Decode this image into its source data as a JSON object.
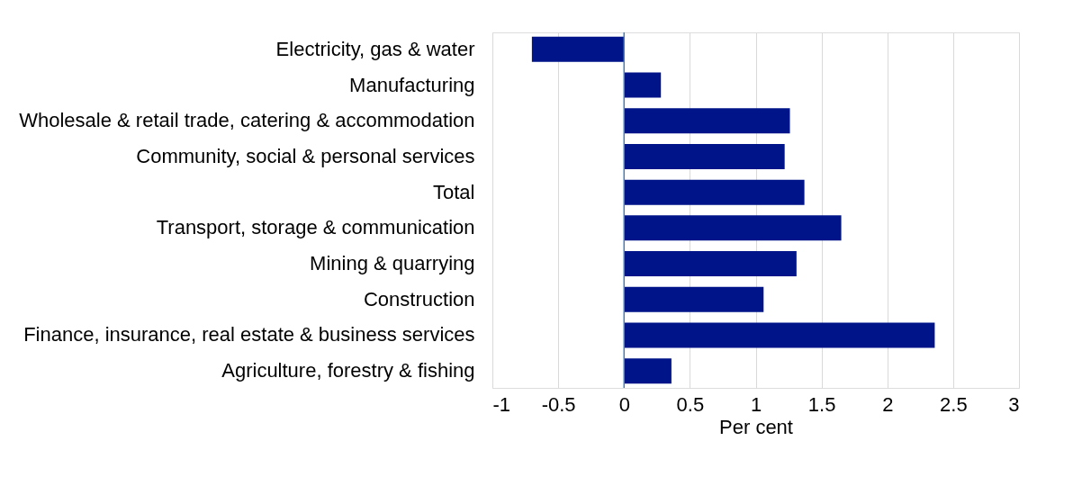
{
  "chart_data": {
    "type": "bar",
    "orientation": "horizontal",
    "xlabel": "Per cent",
    "categories": [
      "Electricity, gas & water",
      "Manufacturing",
      "Wholesale & retail trade, catering & accommodation",
      "Community, social & personal services",
      "Total",
      "Transport, storage & communication",
      "Mining & quarrying",
      "Construction",
      "Finance, insurance, real estate & business services",
      "Agriculture, forestry & fishing"
    ],
    "values": [
      -0.7,
      0.28,
      1.26,
      1.22,
      1.37,
      1.65,
      1.31,
      1.06,
      2.36,
      0.36
    ],
    "color": "#001489",
    "xlim": [
      -1,
      3
    ],
    "xticks": [
      -1,
      -0.5,
      0,
      0.5,
      1,
      1.5,
      2,
      2.5,
      3
    ],
    "grid": "x",
    "ref_lines": [
      {
        "axis": "x",
        "value": 0,
        "color": "#4a7ebb"
      }
    ]
  }
}
